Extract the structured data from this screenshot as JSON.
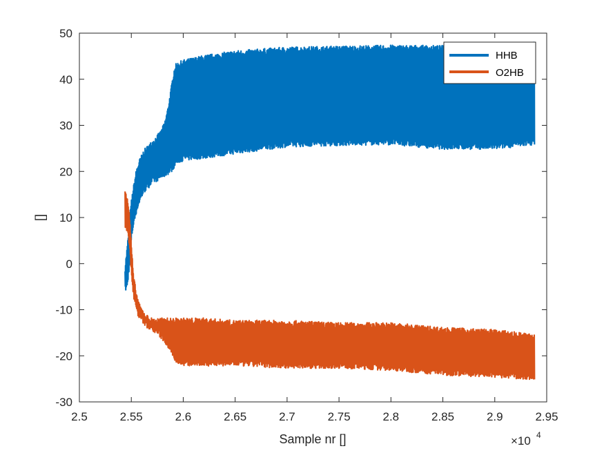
{
  "chart_data": {
    "type": "line",
    "title": "",
    "xlabel": "Sample nr []",
    "ylabel": "[]",
    "x_exponent_label": "×10",
    "x_exponent_power": "4",
    "xlim": [
      2.5,
      2.95
    ],
    "ylim": [
      -30,
      50
    ],
    "x_ticks": [
      "2.5",
      "2.55",
      "2.6",
      "2.65",
      "2.7",
      "2.75",
      "2.8",
      "2.85",
      "2.9",
      "2.95"
    ],
    "y_ticks": [
      "50",
      "40",
      "30",
      "20",
      "10",
      "0",
      "-10",
      "-20",
      "-30"
    ],
    "grid": false,
    "legend_position": "top-right",
    "x_start": 2.544,
    "x_end": 2.938,
    "series": [
      {
        "name": "HHB",
        "color": "#0072BD",
        "upper_x": [
          2.544,
          2.546,
          2.548,
          2.55,
          2.552,
          2.555,
          2.558,
          2.562,
          2.566,
          2.57,
          2.574,
          2.578,
          2.582,
          2.585,
          2.588,
          2.59,
          2.592,
          2.595,
          2.6,
          2.62,
          2.65,
          2.7,
          2.75,
          2.8,
          2.85,
          2.9,
          2.938
        ],
        "upper_y": [
          -1,
          3,
          8,
          13,
          16,
          20,
          22,
          24,
          25,
          26,
          27,
          28,
          30,
          33,
          37,
          40,
          42.5,
          43,
          43.5,
          44.5,
          45.5,
          46.3,
          46.5,
          46.7,
          46.6,
          46.3,
          47.5
        ],
        "lower_x": [
          2.544,
          2.546,
          2.548,
          2.55,
          2.552,
          2.555,
          2.558,
          2.562,
          2.566,
          2.57,
          2.574,
          2.578,
          2.582,
          2.585,
          2.588,
          2.59,
          2.592,
          2.595,
          2.6,
          2.62,
          2.65,
          2.7,
          2.75,
          2.8,
          2.85,
          2.9,
          2.938
        ],
        "lower_y": [
          -5.5,
          -4.5,
          0,
          6,
          9,
          12,
          14,
          16,
          17,
          18,
          18.5,
          19,
          19.5,
          20,
          20.5,
          21,
          22,
          22.5,
          23,
          23.5,
          24.5,
          26,
          26.3,
          26.5,
          25.5,
          25.5,
          26.5
        ]
      },
      {
        "name": "O2HB",
        "color": "#D95319",
        "upper_x": [
          2.544,
          2.546,
          2.548,
          2.55,
          2.552,
          2.555,
          2.558,
          2.562,
          2.566,
          2.57,
          2.574,
          2.578,
          2.582,
          2.585,
          2.588,
          2.59,
          2.592,
          2.595,
          2.6,
          2.62,
          2.65,
          2.7,
          2.75,
          2.8,
          2.85,
          2.9,
          2.938
        ],
        "upper_y": [
          15.5,
          14.5,
          11,
          4,
          -3,
          -7,
          -9.5,
          -11,
          -12,
          -12.5,
          -12.5,
          -12.5,
          -12.5,
          -12.5,
          -12.5,
          -12.5,
          -12.5,
          -12.5,
          -12.5,
          -12.5,
          -13,
          -13,
          -13.5,
          -13.5,
          -14.5,
          -15,
          -16
        ],
        "lower_x": [
          2.544,
          2.546,
          2.548,
          2.55,
          2.552,
          2.555,
          2.558,
          2.562,
          2.566,
          2.57,
          2.574,
          2.578,
          2.582,
          2.585,
          2.588,
          2.59,
          2.592,
          2.595,
          2.6,
          2.62,
          2.65,
          2.7,
          2.75,
          2.8,
          2.85,
          2.9,
          2.938
        ],
        "lower_y": [
          8,
          7.5,
          4,
          -2,
          -7,
          -10,
          -11.5,
          -12.5,
          -13.5,
          -14,
          -14.5,
          -15.5,
          -16.5,
          -17.5,
          -18.5,
          -19.5,
          -20.5,
          -21,
          -21.5,
          -21.5,
          -21.5,
          -22,
          -22,
          -22.5,
          -23.5,
          -24,
          -24.5
        ]
      }
    ]
  }
}
